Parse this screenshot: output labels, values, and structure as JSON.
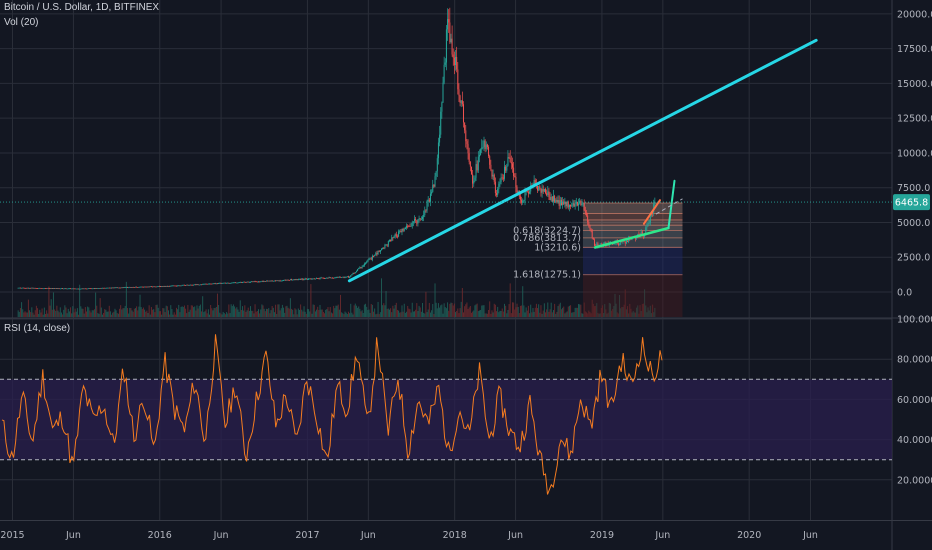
{
  "header": {
    "symbol_title": "Bitcoin / U.S. Dollar, 1D, BITFINEX",
    "volume_label": "Vol (20)",
    "rsi_label": "RSI (14, close)"
  },
  "colors": {
    "background": "#131722",
    "grid": "#2a2e39",
    "up_candle": "#26a69a",
    "down_candle": "#ef5350",
    "trendline": "#26d7e6",
    "rsi_line": "#f57c20",
    "rsi_band": "#2a1f4d",
    "price_label": "#26a69a",
    "fib_fill_top": "#f4a98a",
    "fib_fill_blue": "#1e2a6b",
    "fib_fill_red": "#4a1d22"
  },
  "chart_data": [
    {
      "type": "candlestick",
      "title": "Bitcoin / U.S. Dollar, 1D, BITFINEX",
      "x_ticks": [
        "2015",
        "Jun",
        "2016",
        "Jun",
        "2017",
        "Jun",
        "2018",
        "Jun",
        "2019",
        "Jun",
        "2020",
        "Jun"
      ],
      "y_ticks": [
        "20000.0",
        "17500.0",
        "15000.0",
        "12500.0",
        "10000.0",
        "7500.0",
        "5000.0",
        "2500.0",
        "0.0"
      ],
      "ylim": [
        -1800,
        21000
      ],
      "current_price": "6465.8",
      "price_path": [
        {
          "date": "2015-01",
          "price": 300
        },
        {
          "date": "2015-06",
          "price": 240
        },
        {
          "date": "2016-01",
          "price": 420
        },
        {
          "date": "2016-06",
          "price": 650
        },
        {
          "date": "2017-01",
          "price": 950
        },
        {
          "date": "2017-04",
          "price": 1100
        },
        {
          "date": "2017-06",
          "price": 2600
        },
        {
          "date": "2017-08",
          "price": 4200
        },
        {
          "date": "2017-10",
          "price": 5500
        },
        {
          "date": "2017-11",
          "price": 8200
        },
        {
          "date": "2017-12",
          "price": 19500
        },
        {
          "date": "2018-01",
          "price": 14000
        },
        {
          "date": "2018-02",
          "price": 8000
        },
        {
          "date": "2018-03",
          "price": 11000
        },
        {
          "date": "2018-04",
          "price": 7000
        },
        {
          "date": "2018-05",
          "price": 9500
        },
        {
          "date": "2018-06",
          "price": 6500
        },
        {
          "date": "2018-07",
          "price": 7800
        },
        {
          "date": "2018-09",
          "price": 6400
        },
        {
          "date": "2018-11",
          "price": 6300
        },
        {
          "date": "2018-12",
          "price": 3300
        },
        {
          "date": "2019-02",
          "price": 3500
        },
        {
          "date": "2019-04",
          "price": 4200
        },
        {
          "date": "2019-05",
          "price": 6465.8
        }
      ],
      "fib_levels": [
        {
          "label": "0.618(3224.7)",
          "level": 0.618
        },
        {
          "label": "0.786(3813.7)",
          "level": 0.786
        },
        {
          "label": "1(3210.6)",
          "level": 1
        },
        {
          "label": "1.618(1275.1)",
          "level": 1.618
        }
      ],
      "annotations": {
        "trendline_long": {
          "from": {
            "date": "2017-04",
            "price": 800
          },
          "to": {
            "date": "2020-06",
            "price": 18100
          }
        },
        "support_line": {
          "from": {
            "date": "2018-12",
            "price": 3200
          },
          "to": {
            "date": "2019-06",
            "price": 4600
          }
        },
        "projection_arrow": {
          "from": {
            "date": "2019-06",
            "price": 4600
          },
          "to": {
            "date": "2019-06",
            "price": 8000
          }
        }
      }
    },
    {
      "type": "line",
      "title": "RSI (14, close)",
      "y_ticks": [
        "100.0000",
        "80.0000",
        "60.0000",
        "40.0000",
        "20.0000"
      ],
      "ylim": [
        0,
        100
      ],
      "bands": [
        30,
        70
      ],
      "series": [
        {
          "values": [
            48,
            30,
            62,
            38,
            72,
            44,
            52,
            25,
            66,
            49,
            58,
            36,
            76,
            41,
            62,
            33,
            79,
            55,
            44,
            70,
            38,
            88,
            47,
            68,
            31,
            58,
            82,
            46,
            63,
            37,
            71,
            52,
            28,
            67,
            55,
            84,
            45,
            90,
            43,
            72,
            34,
            60,
            47,
            66,
            32,
            56,
            41,
            74,
            39,
            62,
            44,
            36,
            58,
            30,
            14,
            42,
            32,
            61,
            46,
            73,
            55,
            80,
            66,
            88,
            71,
            82
          ]
        }
      ]
    }
  ]
}
